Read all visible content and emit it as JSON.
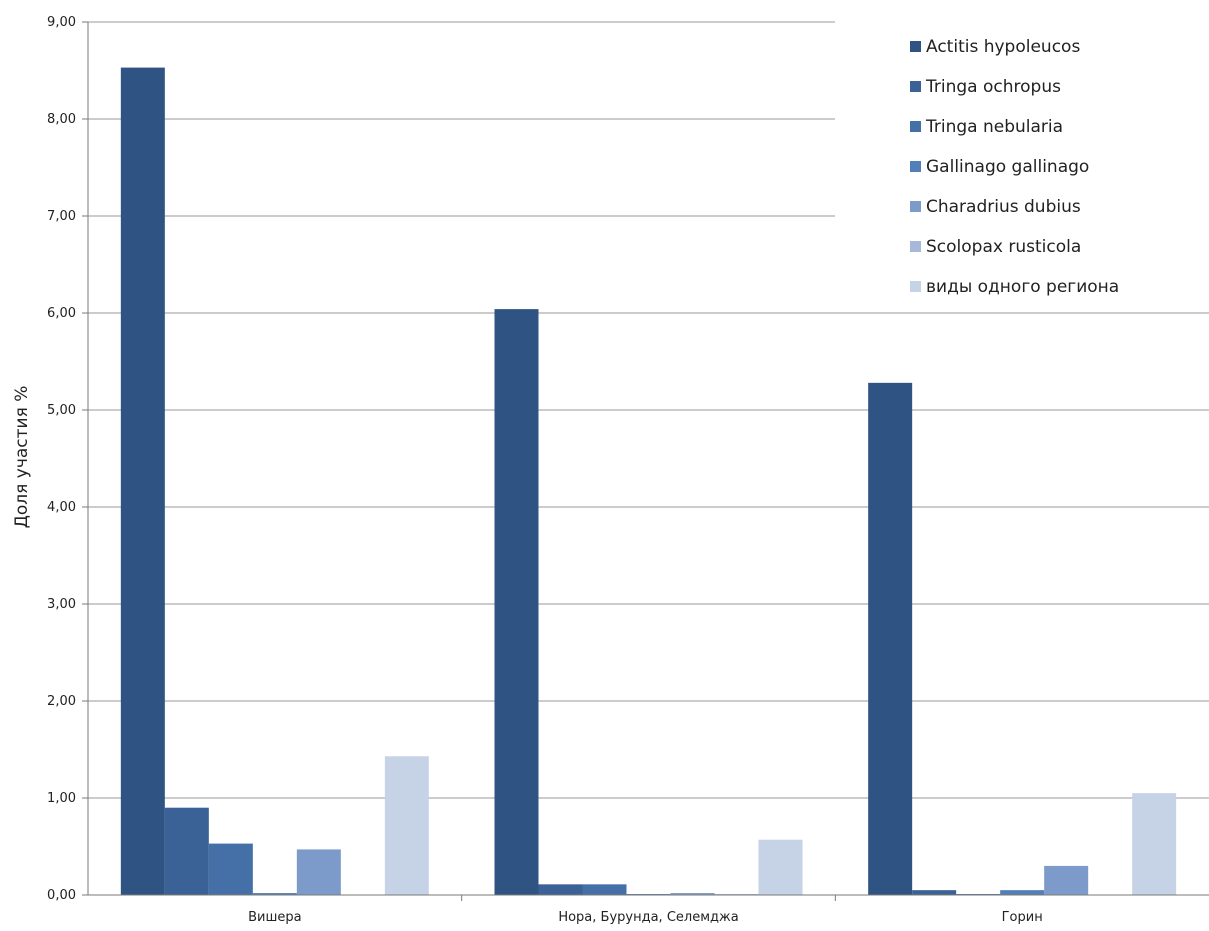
{
  "chart_data": {
    "type": "bar",
    "ylabel": "Доля участия %",
    "xlabel": "",
    "ylim": [
      0,
      9
    ],
    "ytick_step": 1,
    "yticks": [
      "0,00",
      "1,00",
      "2,00",
      "3,00",
      "4,00",
      "5,00",
      "6,00",
      "7,00",
      "8,00",
      "9,00"
    ],
    "grid": true,
    "legend_position": "top-right",
    "categories": [
      "Вишера",
      "Нора, Бурунда, Селемджа",
      "Горин"
    ],
    "series": [
      {
        "name": "Actitis hypoleucos",
        "color": "#2f5483",
        "values": [
          8.53,
          6.04,
          5.28
        ]
      },
      {
        "name": "Tringa ochropus",
        "color": "#3b6296",
        "values": [
          0.9,
          0.11,
          0.05
        ]
      },
      {
        "name": "Tringa nebularia",
        "color": "#4470a7",
        "values": [
          0.53,
          0.11,
          0.01
        ]
      },
      {
        "name": "Gallinago gallinago",
        "color": "#527fb8",
        "values": [
          0.02,
          0.01,
          0.05
        ]
      },
      {
        "name": "Charadrius dubius",
        "color": "#7d9bca",
        "values": [
          0.47,
          0.02,
          0.3
        ]
      },
      {
        "name": "Scolopax rusticola",
        "color": "#a7b8da",
        "values": [
          0.0,
          0.01,
          0.0
        ]
      },
      {
        "name": "виды одного региона",
        "color": "#c6d2e6",
        "values": [
          1.43,
          0.57,
          1.05
        ]
      }
    ]
  }
}
